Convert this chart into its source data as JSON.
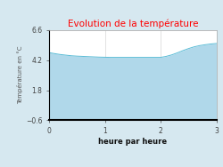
{
  "title": "Evolution de la température",
  "title_color": "#ff0000",
  "xlabel": "heure par heure",
  "ylabel": "Température en °C",
  "background_color": "#d6e8f0",
  "plot_background_color": "#ffffff",
  "fill_color": "#b0d8ea",
  "line_color": "#5bbcd6",
  "ylim": [
    -0.6,
    6.6
  ],
  "xlim": [
    0,
    3
  ],
  "yticks": [
    -0.6,
    1.8,
    4.2,
    6.6
  ],
  "xticks": [
    0,
    1,
    2,
    3
  ],
  "x": [
    0,
    0.1,
    0.2,
    0.3,
    0.4,
    0.5,
    0.6,
    0.7,
    0.8,
    0.9,
    1.0,
    1.1,
    1.2,
    1.3,
    1.4,
    1.5,
    1.6,
    1.7,
    1.8,
    1.9,
    2.0,
    2.1,
    2.2,
    2.3,
    2.4,
    2.5,
    2.6,
    2.7,
    2.8,
    2.9,
    3.0
  ],
  "y": [
    4.8,
    4.72,
    4.65,
    4.6,
    4.55,
    4.52,
    4.5,
    4.48,
    4.46,
    4.44,
    4.43,
    4.42,
    4.42,
    4.42,
    4.42,
    4.42,
    4.42,
    4.42,
    4.42,
    4.42,
    4.42,
    4.5,
    4.62,
    4.78,
    4.96,
    5.12,
    5.26,
    5.36,
    5.43,
    5.49,
    5.53
  ]
}
